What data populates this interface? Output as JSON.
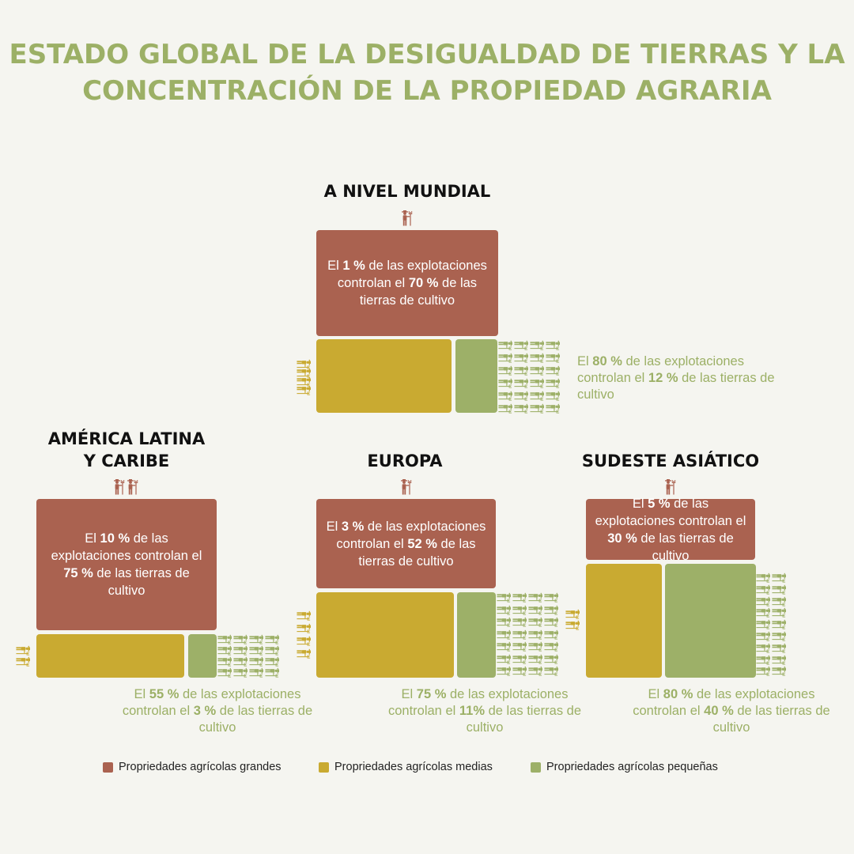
{
  "title": {
    "line1": "ESTADO GLOBAL DE LA DESIGUALDAD DE TIERRAS Y LA",
    "line2": "CONCENTRACIÓN DE LA PROPIEDAD AGRARIA"
  },
  "colors": {
    "large": "#aa6250",
    "medium": "#c9aa31",
    "small": "#9db068",
    "title": "#9cb066"
  },
  "legend": {
    "large": "Propriedades agrícolas grandes",
    "medium": "Propriedades agrícolas medias",
    "small": "Propriedades agrícolas pequeñas"
  },
  "chart_data": [
    {
      "type": "table",
      "region": "A NIVEL MUNDIAL",
      "large": {
        "farms_pct": 1,
        "land_pct": 70,
        "text": {
          "pre": "El",
          "farms": "1 %",
          "mid": "de las explotaciones controlan el",
          "land": "70 %",
          "post": "de las tierras de cultivo"
        }
      },
      "small": {
        "farms_pct": 80,
        "land_pct": 12,
        "text": {
          "pre": "El",
          "farms": "80 %",
          "mid": "de las explotaciones controlan el",
          "land": "12 %",
          "post": "de las tierras de cultivo"
        }
      }
    },
    {
      "type": "table",
      "region_line1": "AMÉRICA LATINA",
      "region_line2": "Y CARIBE",
      "large": {
        "farms_pct": 10,
        "land_pct": 75,
        "text": {
          "pre": "El",
          "farms": "10 %",
          "mid": "de las explotaciones controlan el",
          "land": "75 %",
          "post": "de las tierras de cultivo"
        }
      },
      "small": {
        "farms_pct": 55,
        "land_pct": 3,
        "text": {
          "pre": "El",
          "farms": "55 %",
          "mid": "de las explotaciones controlan el",
          "land": "3 %",
          "post": "de las tierras de cultivo"
        }
      }
    },
    {
      "type": "table",
      "region": "EUROPA",
      "large": {
        "farms_pct": 3,
        "land_pct": 52,
        "text": {
          "pre": "El",
          "farms": "3 %",
          "mid": "de las explotaciones controlan el",
          "land": "52 %",
          "post": "de las tierras de cultivo"
        }
      },
      "small": {
        "farms_pct": 75,
        "land_pct": 11,
        "text": {
          "pre": "El",
          "farms": "75 %",
          "mid": "de las explotaciones controlan el",
          "land": "11%",
          "post": "de las tierras de cultivo"
        }
      }
    },
    {
      "type": "table",
      "region": "SUDESTE ASIÁTICO",
      "large": {
        "farms_pct": 5,
        "land_pct": 30,
        "text": {
          "pre": "El",
          "farms": "5 %",
          "mid": "de las explotaciones controlan el",
          "land": "30 %",
          "post": "de las tierras de cultivo"
        }
      },
      "small": {
        "farms_pct": 80,
        "land_pct": 40,
        "text": {
          "pre": "El",
          "farms": "80 %",
          "mid": "de las explotaciones controlan el",
          "land": "40 %",
          "post": "de las tierras de cultivo"
        }
      }
    }
  ]
}
